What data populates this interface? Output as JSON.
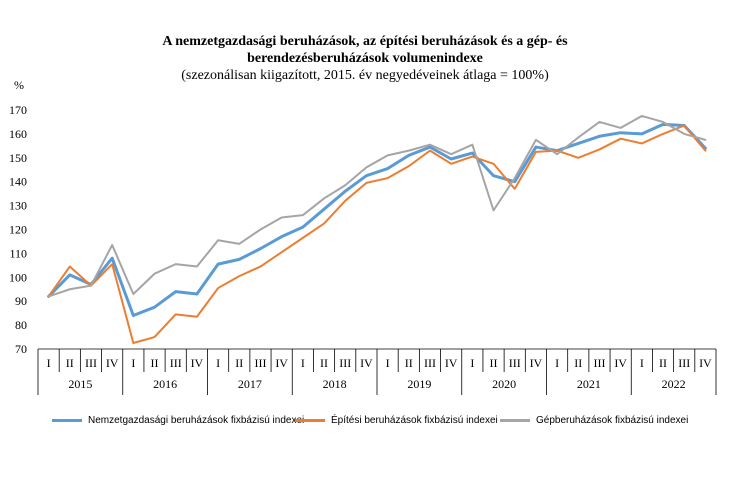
{
  "chart_data": {
    "type": "line",
    "title_lines": [
      "A nemzetgazdasági beruházások, az építési beruházások és a gép- és",
      "berendezésberuházások volumenindexe",
      "(szezonálisan kiigazított, 2015. év negyedéveinek átlaga = 100%)"
    ],
    "ylabel": "%",
    "ylim": [
      70,
      170
    ],
    "yticks": [
      70,
      80,
      90,
      100,
      110,
      120,
      130,
      140,
      150,
      160,
      170
    ],
    "years": [
      "2015",
      "2016",
      "2017",
      "2018",
      "2019",
      "2020",
      "2021",
      "2022"
    ],
    "quarters": [
      "I",
      "II",
      "III",
      "IV"
    ],
    "grid": false,
    "legend_position": "bottom",
    "series": [
      {
        "name": "Nemzetgazdasági beruházások fixbázisú indexei",
        "color": "#5b9bd5",
        "width": 3,
        "values": [
          92,
          101,
          97,
          108,
          84,
          87.5,
          94,
          93,
          105.5,
          107.5,
          112,
          117,
          121,
          128.5,
          136,
          142.5,
          145.5,
          151,
          154.5,
          149.5,
          152,
          142.5,
          140,
          154.5,
          153,
          156,
          159,
          160.5,
          160,
          164,
          163.5,
          154
        ]
      },
      {
        "name": "Építési beruházások fixbázisú indexei",
        "color": "#ed7d31",
        "width": 2,
        "values": [
          92,
          104.5,
          96.5,
          105.5,
          72.5,
          75,
          84.5,
          83.5,
          95.5,
          100.5,
          104.5,
          110.5,
          116.5,
          122.5,
          132,
          139.5,
          141.5,
          146.5,
          153,
          147.5,
          150.5,
          147.5,
          137,
          152.5,
          153,
          150,
          153.5,
          158,
          156,
          160,
          163.5,
          153
        ]
      },
      {
        "name": "Gépberuházások fixbázisú indexei",
        "color": "#a5a5a5",
        "width": 2,
        "values": [
          92,
          95,
          96.5,
          113.5,
          93,
          101.5,
          105.5,
          104.5,
          115.5,
          114,
          120,
          125,
          126,
          133,
          138.5,
          146,
          151,
          153,
          155.5,
          151.5,
          155.5,
          128,
          141.5,
          157.5,
          151.5,
          158.5,
          165,
          162.5,
          167.5,
          165,
          160,
          157.5
        ]
      }
    ]
  }
}
